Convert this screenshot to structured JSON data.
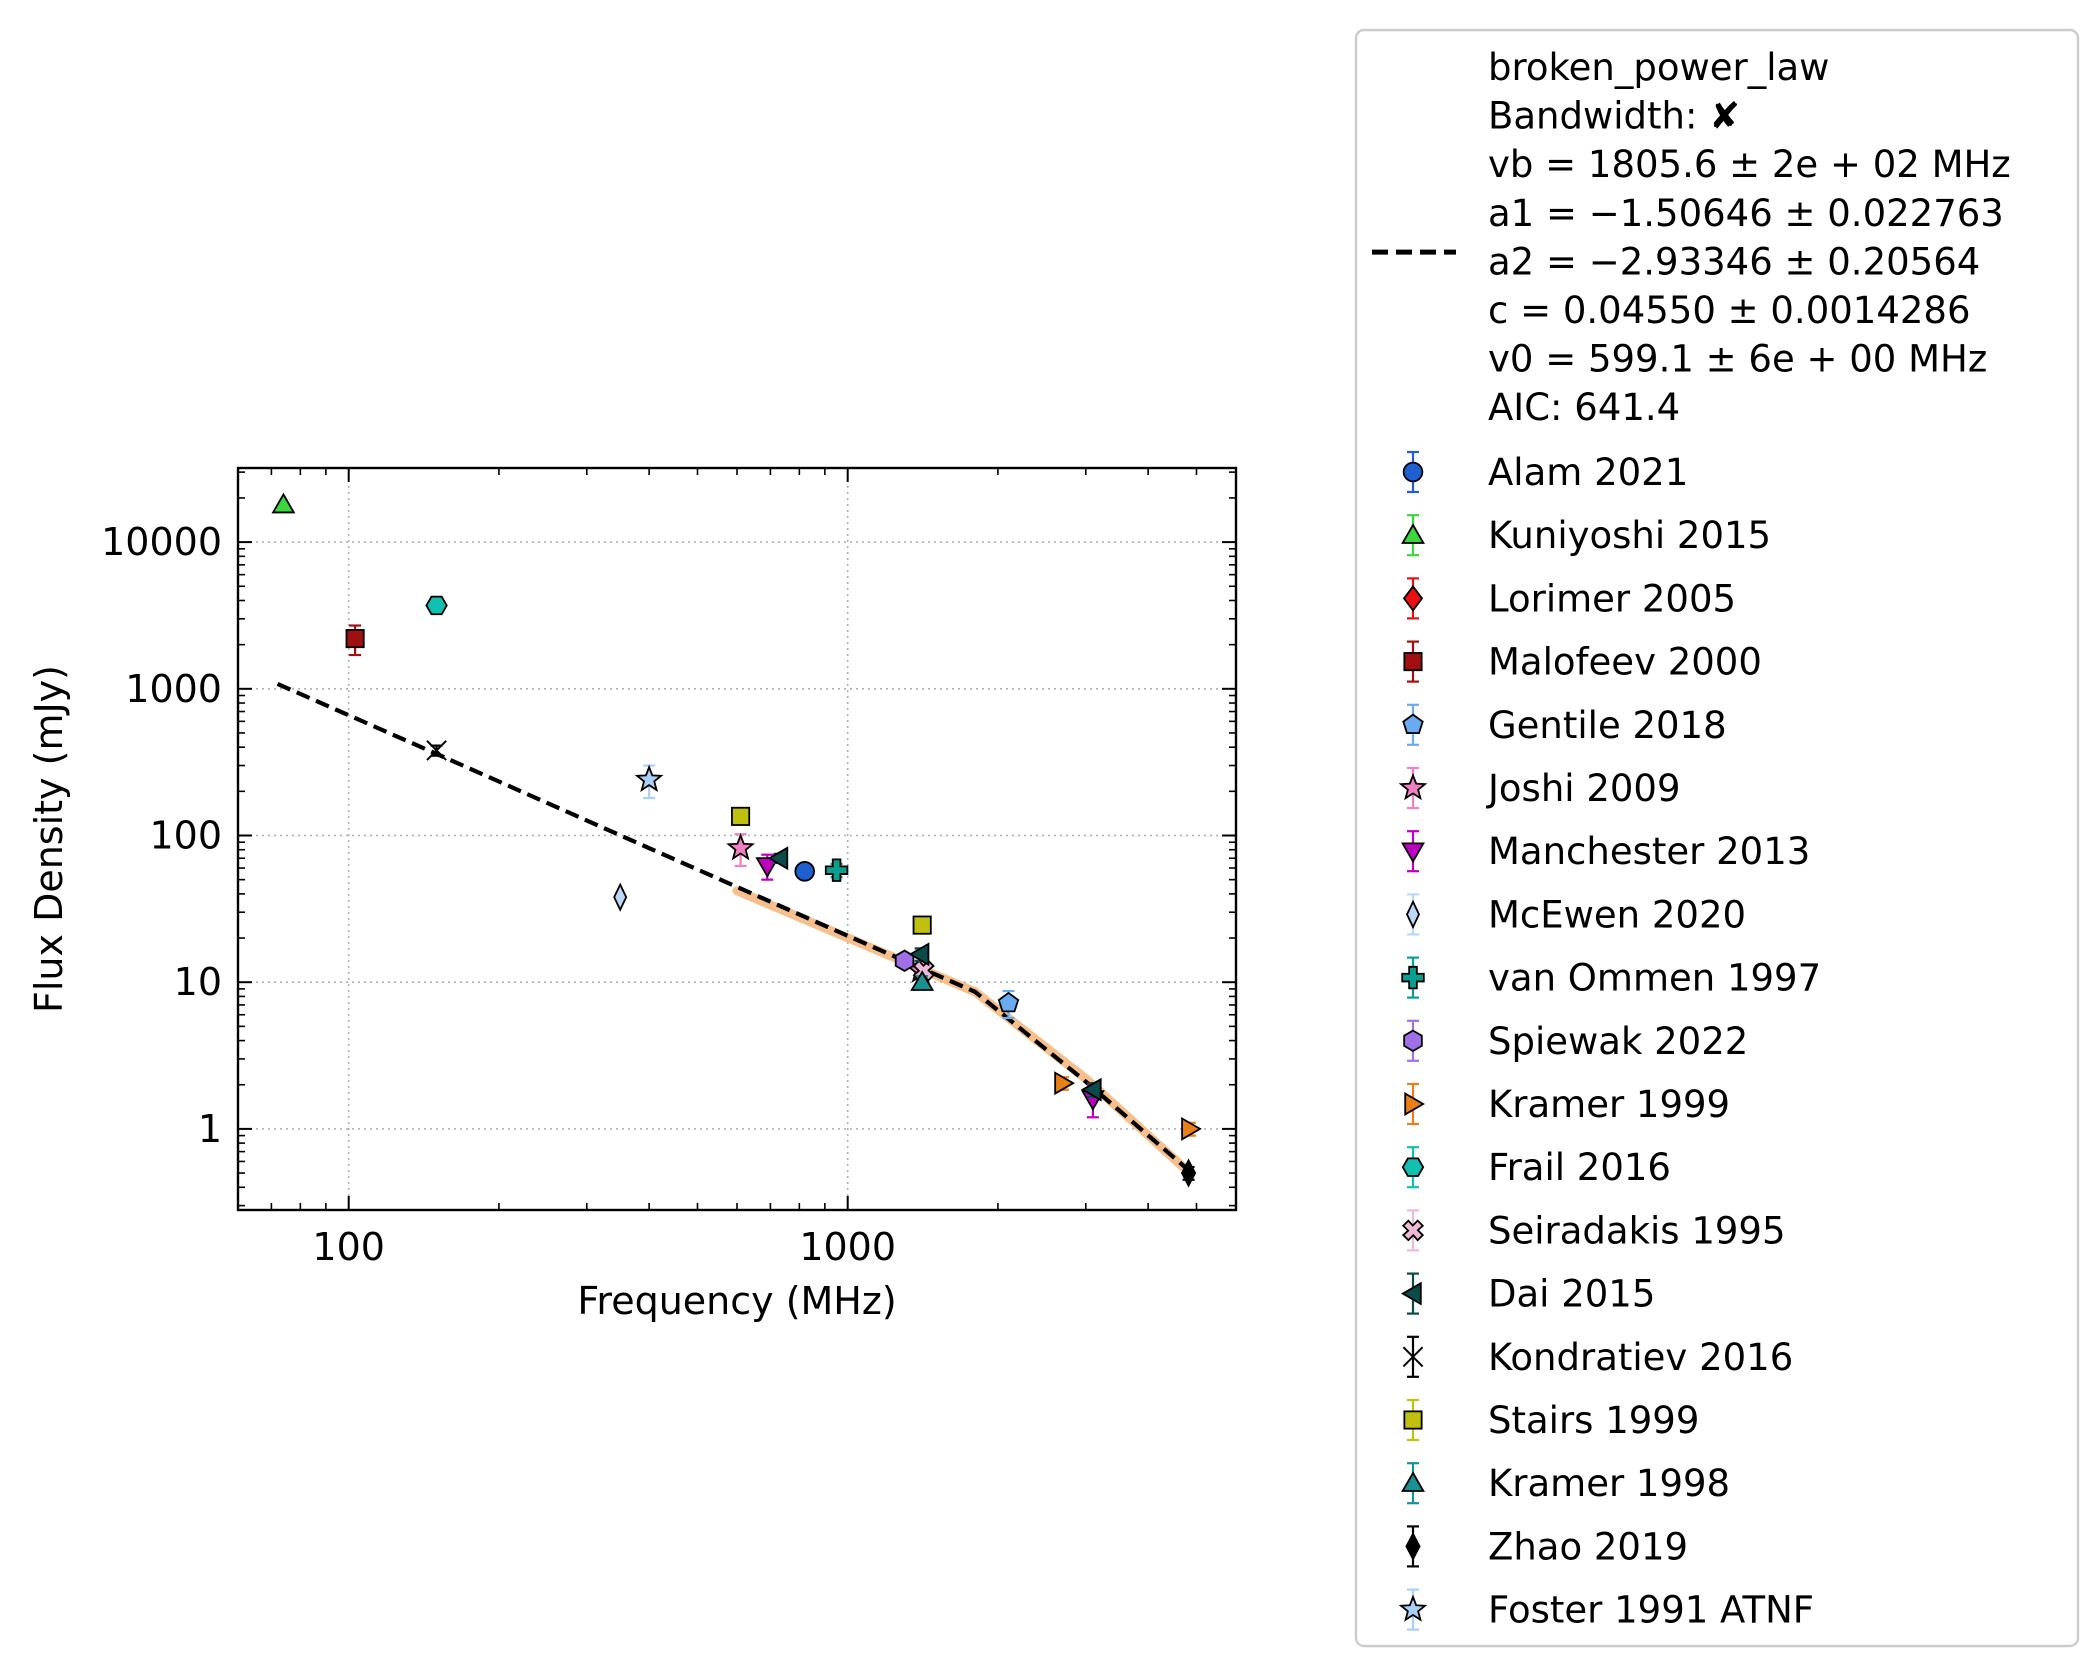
{
  "chart_data": {
    "type": "scatter",
    "xlabel": "Frequency (MHz)",
    "ylabel": "Flux Density (mJy)",
    "xscale": "log",
    "yscale": "log",
    "xlim": [
      60,
      6000
    ],
    "ylim": [
      0.28,
      32000
    ],
    "grid": true,
    "legend_position": "outside-right",
    "x_ticks": [
      {
        "value": 100,
        "label": "100"
      },
      {
        "value": 1000,
        "label": "1000"
      }
    ],
    "y_ticks": [
      {
        "value": 1,
        "label": "1"
      },
      {
        "value": 10,
        "label": "10"
      },
      {
        "value": 100,
        "label": "100"
      },
      {
        "value": 1000,
        "label": "1000"
      },
      {
        "value": 10000,
        "label": "10000"
      }
    ],
    "fit": {
      "label_lines": [
        "broken_power_law",
        "Bandwidth: ✘",
        "vb = 1805.6 ± 2e + 02 MHz",
        "a1 = −1.50646 ± 0.022763",
        "a2 = −2.93346 ± 0.20564",
        "c = 0.04550 ± 0.0014286",
        "v0 = 599.1 ± 6e + 00 MHz",
        "AIC: 641.4"
      ],
      "color": "#000000",
      "band_color": "#f5b880",
      "x_start": 72,
      "x_end": 4800,
      "points": [
        [
          72,
          1080
        ],
        [
          150,
          360
        ],
        [
          400,
          82
        ],
        [
          1400,
          12.5
        ],
        [
          1800,
          8.6
        ],
        [
          3000,
          2.1
        ],
        [
          4800,
          0.53
        ]
      ],
      "band": [
        [
          600,
          42
        ],
        [
          1800,
          8.6
        ],
        [
          3000,
          2.2
        ],
        [
          4700,
          0.55
        ]
      ]
    },
    "series": [
      {
        "name": "Alam 2021",
        "marker": "circle",
        "color": "#1f5fcf",
        "points": [
          [
            820,
            57,
            6
          ]
        ]
      },
      {
        "name": "Kuniyoshi 2015",
        "marker": "triangle-up",
        "color": "#3ed63e",
        "points": [
          [
            74,
            18000,
            0
          ]
        ]
      },
      {
        "name": "Lorimer 2005",
        "marker": "diamond",
        "color": "#e81010",
        "points": []
      },
      {
        "name": "Malofeev 2000",
        "marker": "square",
        "color": "#a01010",
        "points": [
          [
            103,
            2200,
            500
          ]
        ]
      },
      {
        "name": "Gentile 2018",
        "marker": "pentagon",
        "color": "#6aaaf0",
        "points": [
          [
            2100,
            7.2,
            1.5
          ]
        ]
      },
      {
        "name": "Joshi 2009",
        "marker": "star",
        "color": "#f080c0",
        "points": [
          [
            610,
            82,
            20
          ],
          [
            1400,
            12,
            1.5
          ]
        ]
      },
      {
        "name": "Manchester 2013",
        "marker": "triangle-down",
        "color": "#c000c0",
        "points": [
          [
            690,
            62,
            12
          ],
          [
            3100,
            1.6,
            0.4
          ]
        ]
      },
      {
        "name": "McEwen 2020",
        "marker": "thin-diamond",
        "color": "#bcd8f8",
        "points": [
          [
            350,
            38,
            0
          ]
        ]
      },
      {
        "name": "van Ommen 1997",
        "marker": "plus",
        "color": "#0aa090",
        "points": [
          [
            950,
            58,
            6
          ]
        ]
      },
      {
        "name": "Spiewak 2022",
        "marker": "hexagon",
        "color": "#a070e8",
        "points": [
          [
            1300,
            14,
            1
          ]
        ]
      },
      {
        "name": "Kramer 1999",
        "marker": "triangle-right",
        "color": "#e87f18",
        "points": [
          [
            2700,
            2.05,
            0.2
          ],
          [
            4850,
            1.0,
            0.1
          ]
        ]
      },
      {
        "name": "Frail 2016",
        "marker": "hexagon-flat",
        "color": "#10c0b0",
        "points": [
          [
            150,
            3700,
            300
          ]
        ]
      },
      {
        "name": "Seiradakis 1995",
        "marker": "x-filled",
        "color": "#f0b8d8",
        "points": [
          [
            1420,
            12,
            1.5
          ]
        ]
      },
      {
        "name": "Dai 2015",
        "marker": "triangle-left",
        "color": "#0a4a48",
        "points": [
          [
            730,
            70,
            5
          ],
          [
            1400,
            15.5,
            1.5
          ],
          [
            3100,
            1.85,
            0.2
          ]
        ]
      },
      {
        "name": "Kondratiev 2016",
        "marker": "thin-x",
        "color": "#000000",
        "points": [
          [
            150,
            380,
            30
          ]
        ]
      },
      {
        "name": "Stairs 1999",
        "marker": "square",
        "color": "#c0c010",
        "points": [
          [
            610,
            135,
            10
          ],
          [
            1410,
            24.5,
            2
          ]
        ]
      },
      {
        "name": "Kramer 1998",
        "marker": "triangle-up",
        "color": "#1a9090",
        "points": [
          [
            1410,
            10,
            1
          ]
        ]
      },
      {
        "name": "Zhao 2019",
        "marker": "thin-diamond-black",
        "color": "#000000",
        "points": [
          [
            4820,
            0.5,
            0.05
          ]
        ]
      },
      {
        "name": "Foster 1991 ATNF",
        "marker": "star",
        "color": "#a8d0f8",
        "points": [
          [
            400,
            240,
            60
          ]
        ]
      }
    ]
  }
}
